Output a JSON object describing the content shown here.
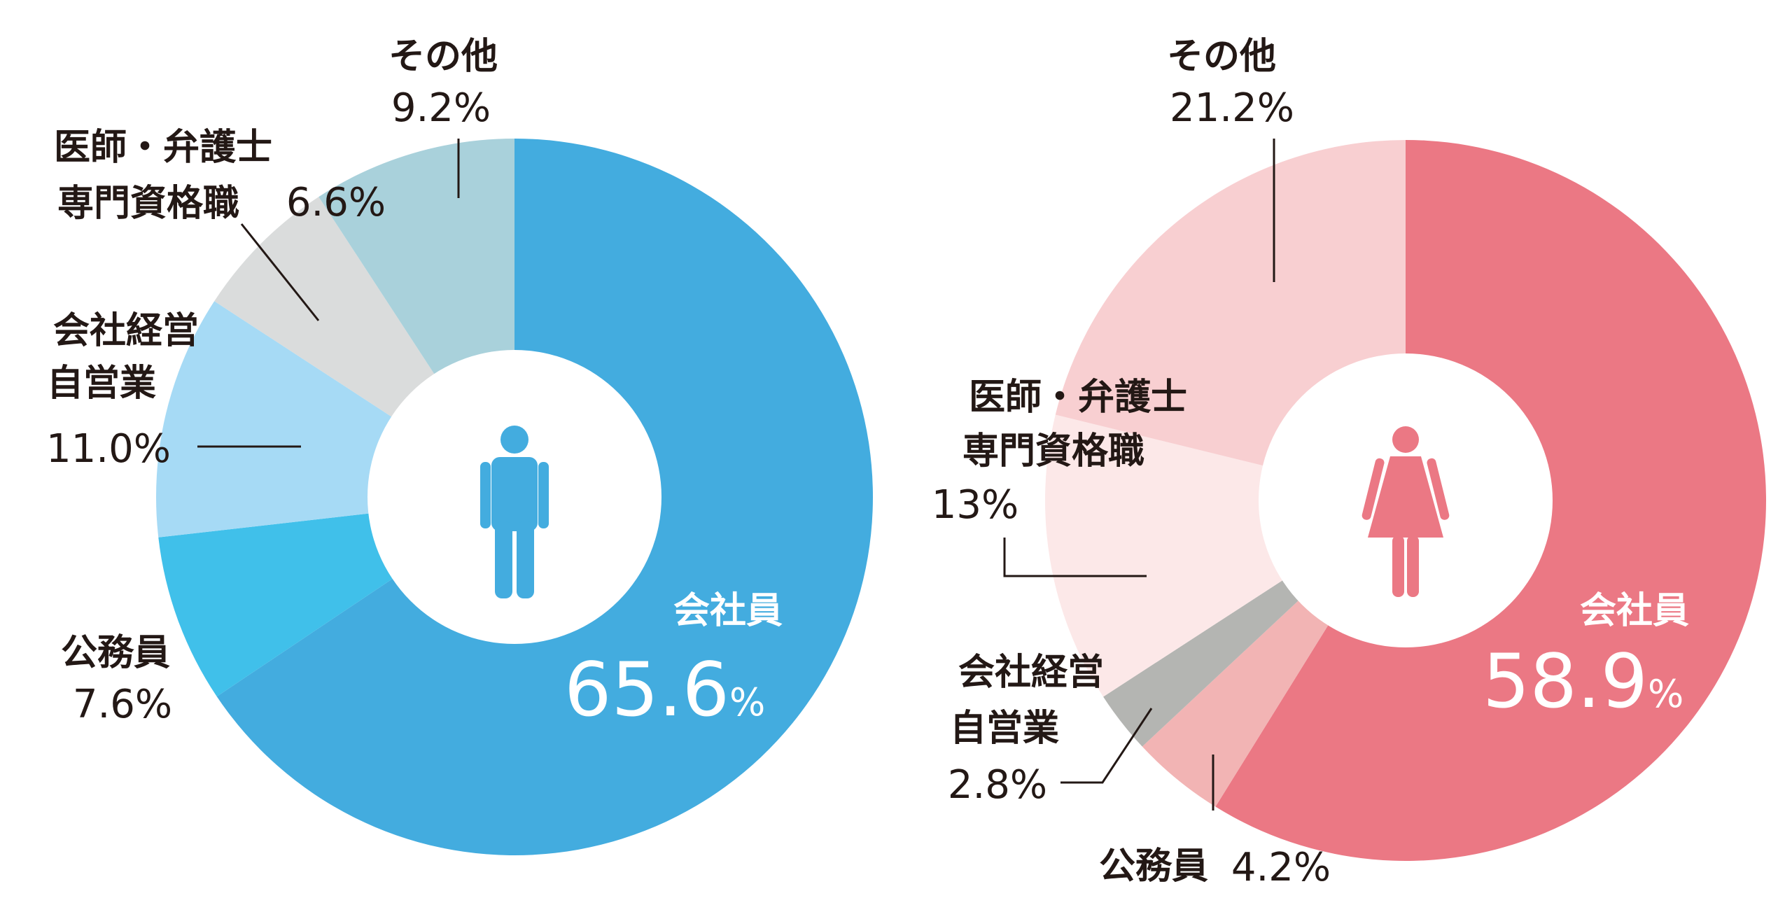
{
  "chart_data": [
    {
      "type": "pie",
      "variant": "donut",
      "center_icon": "male-person-icon",
      "slices": [
        {
          "label": "会社員",
          "value": 65.6,
          "value_text": "65.6",
          "unit": "%",
          "color": "#43ACDF"
        },
        {
          "label": "公務員",
          "value": 7.6,
          "value_text": "7.6%",
          "color": "#40C0EA"
        },
        {
          "label": "会社経営\n自営業",
          "label_lines": [
            "会社経営",
            "自営業"
          ],
          "value": 11.0,
          "value_text": "11.0%",
          "color": "#A6DAF5"
        },
        {
          "label": "医師・弁護士\n専門資格職",
          "label_lines": [
            "医師・弁護士",
            "専門資格職"
          ],
          "value": 6.6,
          "value_text": "6.6%",
          "color": "#DADCDC"
        },
        {
          "label": "その他",
          "value": 9.2,
          "value_text": "9.2%",
          "color": "#A9D1DB"
        }
      ]
    },
    {
      "type": "pie",
      "variant": "donut",
      "center_icon": "female-person-icon",
      "slices": [
        {
          "label": "会社員",
          "value": 58.9,
          "value_text": "58.9",
          "unit": "%",
          "color": "#EB7884"
        },
        {
          "label": "公務員",
          "value": 4.2,
          "value_text": "4.2%",
          "color": "#F2B4B4"
        },
        {
          "label": "会社経営\n自営業",
          "label_lines": [
            "会社経営",
            "自営業"
          ],
          "value": 2.8,
          "value_text": "2.8%",
          "color": "#B4B5B2"
        },
        {
          "label": "医師・弁護士\n専門資格職",
          "label_lines": [
            "医師・弁護士",
            "専門資格職"
          ],
          "value": 13,
          "value_text": "13%",
          "color": "#FCE8E8"
        },
        {
          "label": "その他",
          "value": 21.2,
          "value_text": "21.2%",
          "color": "#F8CFD1"
        }
      ]
    }
  ]
}
